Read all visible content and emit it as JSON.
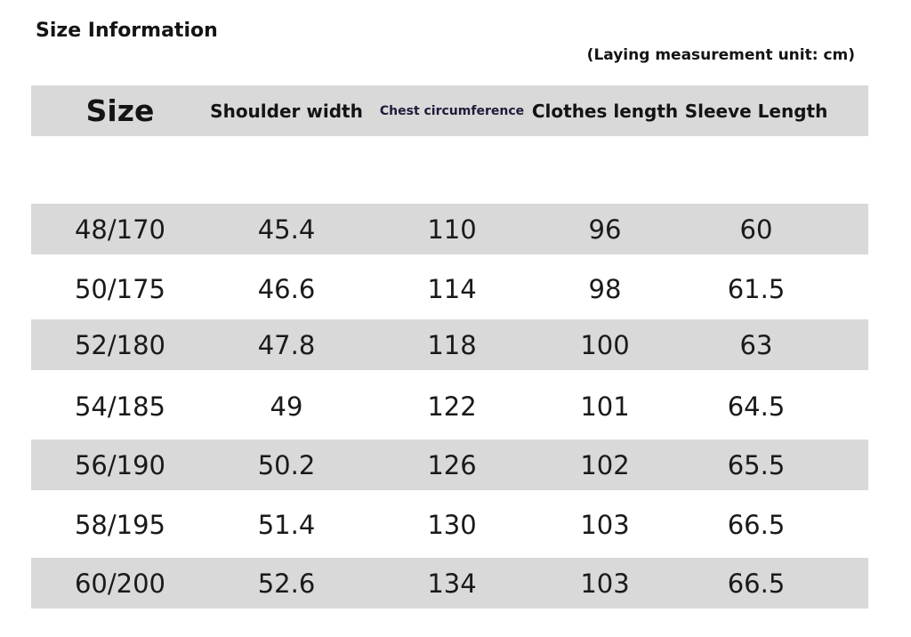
{
  "title": "Size Information",
  "unit_note": "(Laying measurement unit: cm)",
  "table": {
    "headers": [
      "Size",
      "Shoulder width",
      "Chest circumference",
      "Clothes length",
      "Sleeve Length"
    ],
    "rows": [
      [
        "48/170",
        "45.4",
        "110",
        "96",
        "60"
      ],
      [
        "50/175",
        "46.6",
        "114",
        "98",
        "61.5"
      ],
      [
        "52/180",
        "47.8",
        "118",
        "100",
        "63"
      ],
      [
        "54/185",
        "49",
        "122",
        "101",
        "64.5"
      ],
      [
        "56/190",
        "50.2",
        "126",
        "102",
        "65.5"
      ],
      [
        "58/195",
        "51.4",
        "130",
        "103",
        "66.5"
      ],
      [
        "60/200",
        "52.6",
        "134",
        "103",
        "66.5"
      ]
    ]
  },
  "colors": {
    "band": "#d9d9d9",
    "text": "#141414",
    "chest_header": "#1f1a3a"
  }
}
